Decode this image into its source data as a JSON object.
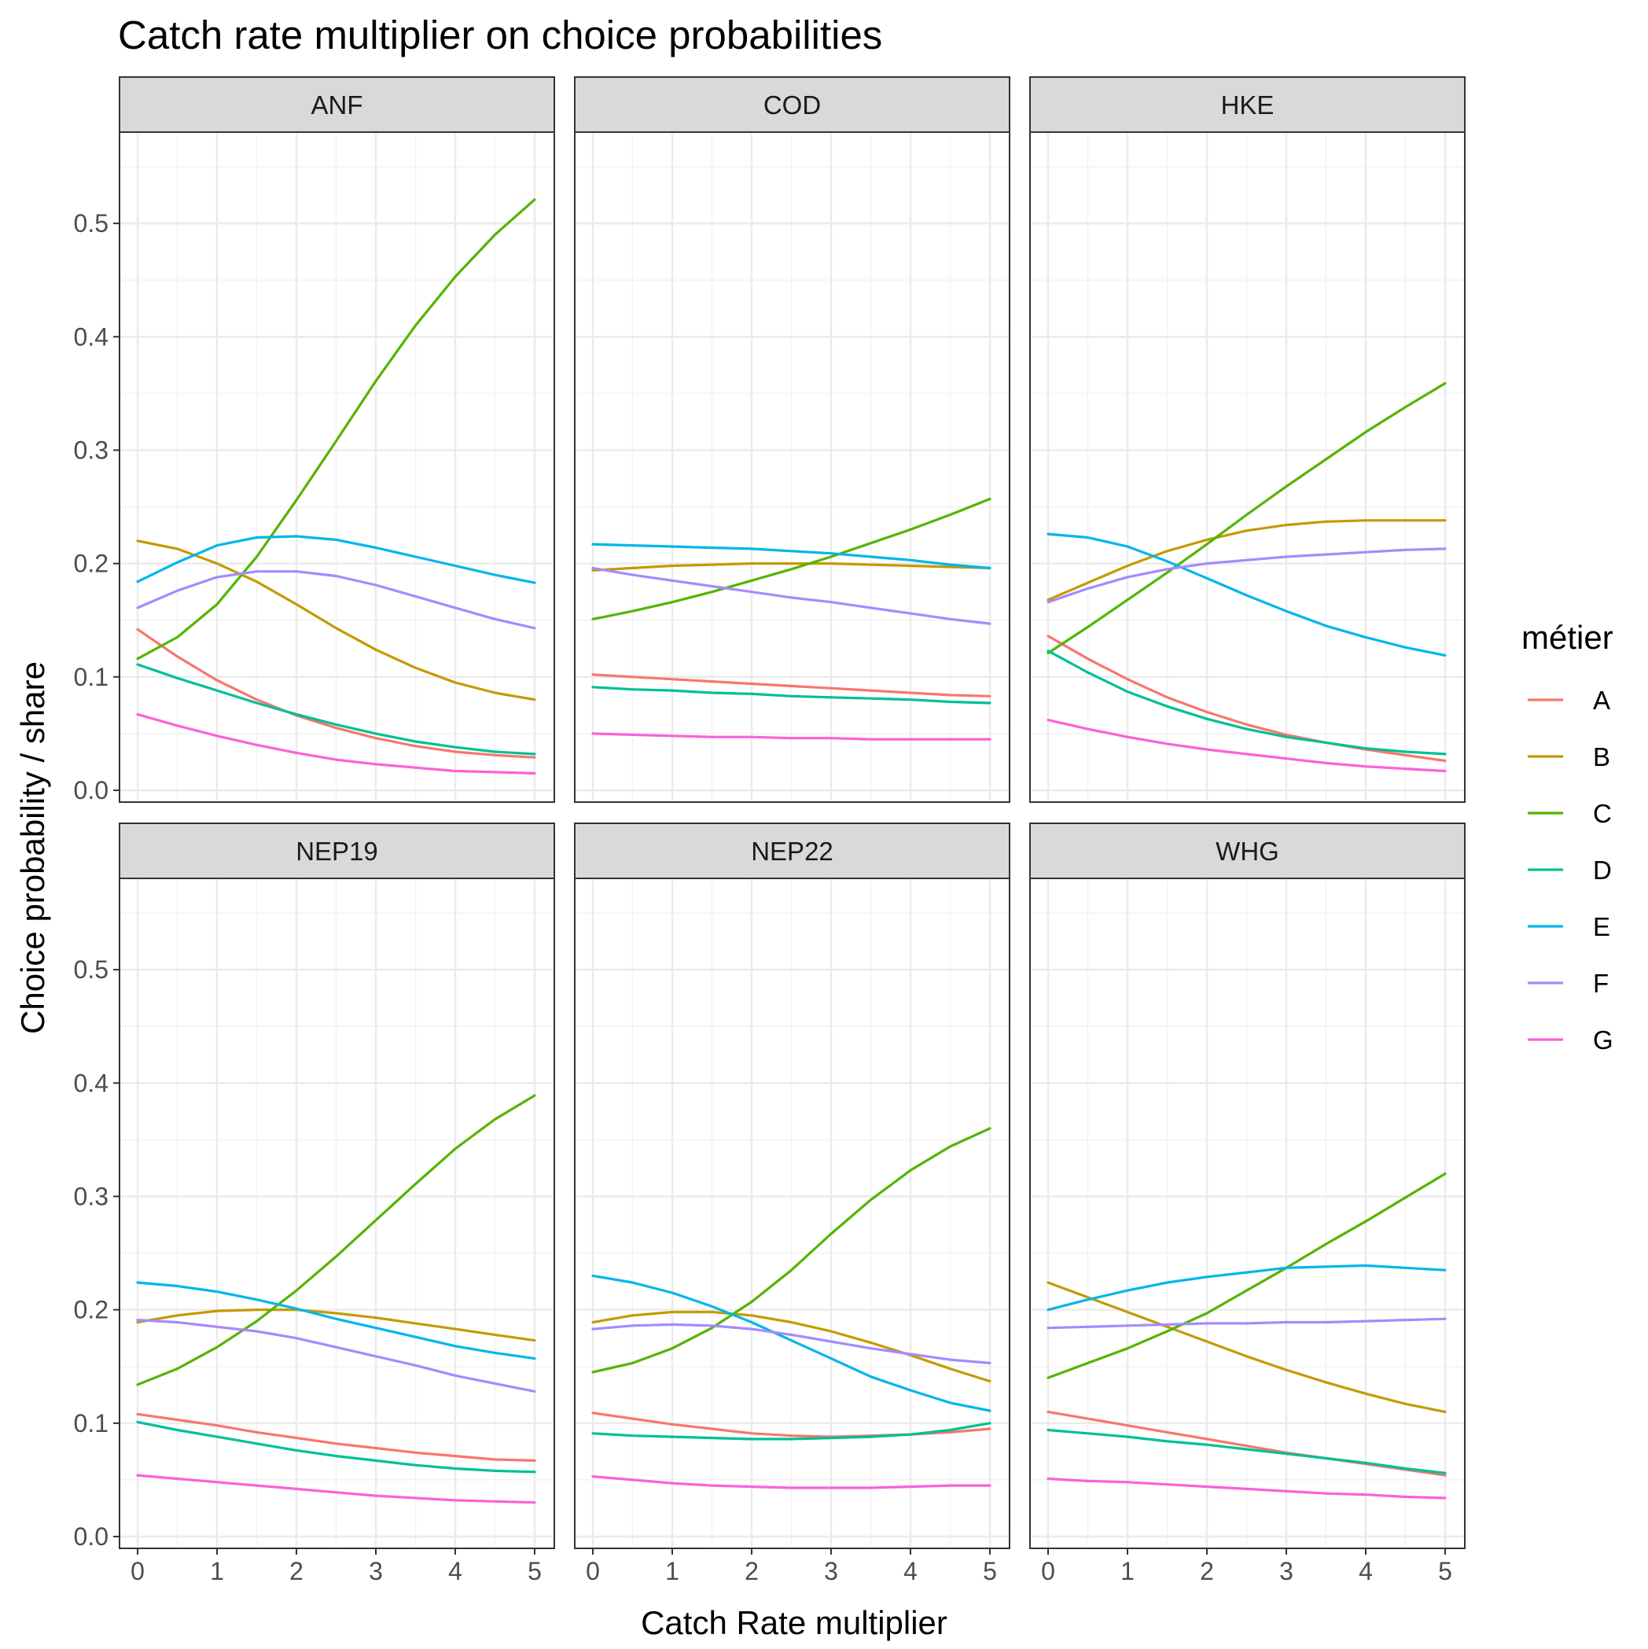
{
  "chart_data": {
    "type": "line",
    "title": "Catch rate multiplier on choice probabilities",
    "xlabel": "Catch Rate multiplier",
    "ylabel": "Choice probability / share",
    "xlim": [
      0,
      5
    ],
    "ylim": [
      0,
      0.55
    ],
    "x_ticks": [
      "0",
      "1",
      "2",
      "3",
      "4",
      "5"
    ],
    "y_ticks": [
      "0.0",
      "0.1",
      "0.2",
      "0.3",
      "0.4",
      "0.5"
    ],
    "grid": true,
    "legend": {
      "title": "métier",
      "position": "right",
      "entries": [
        {
          "name": "A",
          "color": "#F8766D"
        },
        {
          "name": "B",
          "color": "#C49A00"
        },
        {
          "name": "C",
          "color": "#53B400"
        },
        {
          "name": "D",
          "color": "#00C094"
        },
        {
          "name": "E",
          "color": "#00B6EB"
        },
        {
          "name": "F",
          "color": "#A58AFF"
        },
        {
          "name": "G",
          "color": "#FB61D7"
        }
      ]
    },
    "x": [
      0,
      0.5,
      1,
      1.5,
      2,
      2.5,
      3,
      3.5,
      4,
      4.5,
      5
    ],
    "panels": [
      {
        "name": "ANF",
        "series": [
          {
            "name": "A",
            "values": [
              0.142,
              0.118,
              0.097,
              0.08,
              0.066,
              0.055,
              0.046,
              0.039,
              0.034,
              0.031,
              0.029
            ]
          },
          {
            "name": "B",
            "values": [
              0.22,
              0.213,
              0.2,
              0.184,
              0.164,
              0.143,
              0.124,
              0.108,
              0.095,
              0.086,
              0.08
            ]
          },
          {
            "name": "C",
            "values": [
              0.116,
              0.135,
              0.164,
              0.206,
              0.256,
              0.308,
              0.361,
              0.41,
              0.453,
              0.49,
              0.521
            ]
          },
          {
            "name": "D",
            "values": [
              0.111,
              0.099,
              0.088,
              0.077,
              0.067,
              0.058,
              0.05,
              0.043,
              0.038,
              0.034,
              0.032
            ]
          },
          {
            "name": "E",
            "values": [
              0.184,
              0.201,
              0.216,
              0.223,
              0.224,
              0.221,
              0.214,
              0.206,
              0.198,
              0.19,
              0.183
            ]
          },
          {
            "name": "F",
            "values": [
              0.161,
              0.176,
              0.188,
              0.193,
              0.193,
              0.189,
              0.181,
              0.171,
              0.161,
              0.151,
              0.143
            ]
          },
          {
            "name": "G",
            "values": [
              0.067,
              0.057,
              0.048,
              0.04,
              0.033,
              0.027,
              0.023,
              0.02,
              0.017,
              0.016,
              0.015
            ]
          }
        ]
      },
      {
        "name": "COD",
        "series": [
          {
            "name": "A",
            "values": [
              0.102,
              0.1,
              0.098,
              0.096,
              0.094,
              0.092,
              0.09,
              0.088,
              0.086,
              0.084,
              0.083
            ]
          },
          {
            "name": "B",
            "values": [
              0.194,
              0.196,
              0.198,
              0.199,
              0.2,
              0.2,
              0.2,
              0.199,
              0.198,
              0.197,
              0.196
            ]
          },
          {
            "name": "C",
            "values": [
              0.151,
              0.158,
              0.166,
              0.175,
              0.185,
              0.195,
              0.206,
              0.218,
              0.23,
              0.243,
              0.257
            ]
          },
          {
            "name": "D",
            "values": [
              0.091,
              0.089,
              0.088,
              0.086,
              0.085,
              0.083,
              0.082,
              0.081,
              0.08,
              0.078,
              0.077
            ]
          },
          {
            "name": "E",
            "values": [
              0.217,
              0.216,
              0.215,
              0.214,
              0.213,
              0.211,
              0.209,
              0.206,
              0.203,
              0.199,
              0.196
            ]
          },
          {
            "name": "F",
            "values": [
              0.196,
              0.19,
              0.185,
              0.18,
              0.175,
              0.17,
              0.166,
              0.161,
              0.156,
              0.151,
              0.147
            ]
          },
          {
            "name": "G",
            "values": [
              0.05,
              0.049,
              0.048,
              0.047,
              0.047,
              0.046,
              0.046,
              0.045,
              0.045,
              0.045,
              0.045
            ]
          }
        ]
      },
      {
        "name": "HKE",
        "series": [
          {
            "name": "A",
            "values": [
              0.136,
              0.116,
              0.098,
              0.082,
              0.069,
              0.058,
              0.049,
              0.042,
              0.036,
              0.031,
              0.026
            ]
          },
          {
            "name": "B",
            "values": [
              0.168,
              0.183,
              0.198,
              0.211,
              0.221,
              0.229,
              0.234,
              0.237,
              0.238,
              0.238,
              0.238
            ]
          },
          {
            "name": "C",
            "values": [
              0.121,
              0.144,
              0.168,
              0.192,
              0.217,
              0.243,
              0.268,
              0.292,
              0.316,
              0.338,
              0.359
            ]
          },
          {
            "name": "D",
            "values": [
              0.123,
              0.104,
              0.087,
              0.074,
              0.063,
              0.054,
              0.047,
              0.042,
              0.037,
              0.034,
              0.032
            ]
          },
          {
            "name": "E",
            "values": [
              0.226,
              0.223,
              0.215,
              0.202,
              0.187,
              0.172,
              0.158,
              0.145,
              0.135,
              0.126,
              0.119
            ]
          },
          {
            "name": "F",
            "values": [
              0.166,
              0.178,
              0.188,
              0.195,
              0.2,
              0.203,
              0.206,
              0.208,
              0.21,
              0.212,
              0.213
            ]
          },
          {
            "name": "G",
            "values": [
              0.062,
              0.054,
              0.047,
              0.041,
              0.036,
              0.032,
              0.028,
              0.024,
              0.021,
              0.019,
              0.017
            ]
          }
        ]
      },
      {
        "name": "NEP19",
        "series": [
          {
            "name": "A",
            "values": [
              0.108,
              0.103,
              0.098,
              0.092,
              0.087,
              0.082,
              0.078,
              0.074,
              0.071,
              0.068,
              0.067
            ]
          },
          {
            "name": "B",
            "values": [
              0.189,
              0.195,
              0.199,
              0.2,
              0.2,
              0.197,
              0.193,
              0.188,
              0.183,
              0.178,
              0.173
            ]
          },
          {
            "name": "C",
            "values": [
              0.134,
              0.148,
              0.167,
              0.19,
              0.217,
              0.247,
              0.279,
              0.311,
              0.342,
              0.368,
              0.389
            ]
          },
          {
            "name": "D",
            "values": [
              0.101,
              0.094,
              0.088,
              0.082,
              0.076,
              0.071,
              0.067,
              0.063,
              0.06,
              0.058,
              0.057
            ]
          },
          {
            "name": "E",
            "values": [
              0.224,
              0.221,
              0.216,
              0.209,
              0.201,
              0.192,
              0.184,
              0.176,
              0.168,
              0.162,
              0.157
            ]
          },
          {
            "name": "F",
            "values": [
              0.191,
              0.189,
              0.185,
              0.181,
              0.175,
              0.167,
              0.159,
              0.151,
              0.142,
              0.135,
              0.128
            ]
          },
          {
            "name": "G",
            "values": [
              0.054,
              0.051,
              0.048,
              0.045,
              0.042,
              0.039,
              0.036,
              0.034,
              0.032,
              0.031,
              0.03
            ]
          }
        ]
      },
      {
        "name": "NEP22",
        "series": [
          {
            "name": "A",
            "values": [
              0.109,
              0.104,
              0.099,
              0.095,
              0.091,
              0.089,
              0.088,
              0.089,
              0.09,
              0.092,
              0.095
            ]
          },
          {
            "name": "B",
            "values": [
              0.189,
              0.195,
              0.198,
              0.198,
              0.195,
              0.189,
              0.181,
              0.171,
              0.16,
              0.148,
              0.137
            ]
          },
          {
            "name": "C",
            "values": [
              0.145,
              0.153,
              0.166,
              0.184,
              0.207,
              0.235,
              0.267,
              0.297,
              0.323,
              0.344,
              0.36
            ]
          },
          {
            "name": "D",
            "values": [
              0.091,
              0.089,
              0.088,
              0.087,
              0.086,
              0.086,
              0.087,
              0.088,
              0.09,
              0.094,
              0.1
            ]
          },
          {
            "name": "E",
            "values": [
              0.23,
              0.224,
              0.215,
              0.203,
              0.189,
              0.173,
              0.157,
              0.141,
              0.129,
              0.118,
              0.111
            ]
          },
          {
            "name": "F",
            "values": [
              0.183,
              0.186,
              0.187,
              0.186,
              0.183,
              0.178,
              0.172,
              0.166,
              0.161,
              0.156,
              0.153
            ]
          },
          {
            "name": "G",
            "values": [
              0.053,
              0.05,
              0.047,
              0.045,
              0.044,
              0.043,
              0.043,
              0.043,
              0.044,
              0.045,
              0.045
            ]
          }
        ]
      },
      {
        "name": "WHG",
        "series": [
          {
            "name": "A",
            "values": [
              0.11,
              0.104,
              0.098,
              0.092,
              0.086,
              0.08,
              0.074,
              0.069,
              0.064,
              0.059,
              0.054
            ]
          },
          {
            "name": "B",
            "values": [
              0.224,
              0.211,
              0.198,
              0.185,
              0.172,
              0.159,
              0.147,
              0.136,
              0.126,
              0.117,
              0.11
            ]
          },
          {
            "name": "C",
            "values": [
              0.14,
              0.153,
              0.166,
              0.181,
              0.197,
              0.217,
              0.237,
              0.258,
              0.278,
              0.299,
              0.32
            ]
          },
          {
            "name": "D",
            "values": [
              0.094,
              0.091,
              0.088,
              0.084,
              0.081,
              0.077,
              0.073,
              0.069,
              0.065,
              0.06,
              0.056
            ]
          },
          {
            "name": "E",
            "values": [
              0.2,
              0.209,
              0.217,
              0.224,
              0.229,
              0.233,
              0.237,
              0.238,
              0.239,
              0.237,
              0.235
            ]
          },
          {
            "name": "F",
            "values": [
              0.184,
              0.185,
              0.186,
              0.187,
              0.188,
              0.188,
              0.189,
              0.189,
              0.19,
              0.191,
              0.192
            ]
          },
          {
            "name": "G",
            "values": [
              0.051,
              0.049,
              0.048,
              0.046,
              0.044,
              0.042,
              0.04,
              0.038,
              0.037,
              0.035,
              0.034
            ]
          }
        ]
      }
    ]
  }
}
